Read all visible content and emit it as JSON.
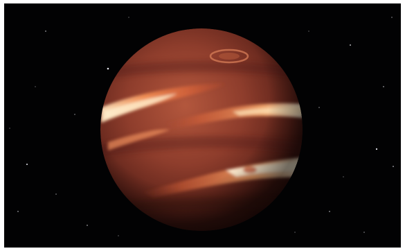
{
  "image": {
    "subject": "planet-illustration",
    "colors": {
      "space": "#020203",
      "frame": "#ffffff",
      "planet_base": "#8a3a2a",
      "planet_light": "#b85a3c",
      "planet_dark": "#4a1a14",
      "band_glow": "#ffd9a8",
      "band_hot": "#ff8a4a",
      "star": "#e8e8f0"
    }
  }
}
